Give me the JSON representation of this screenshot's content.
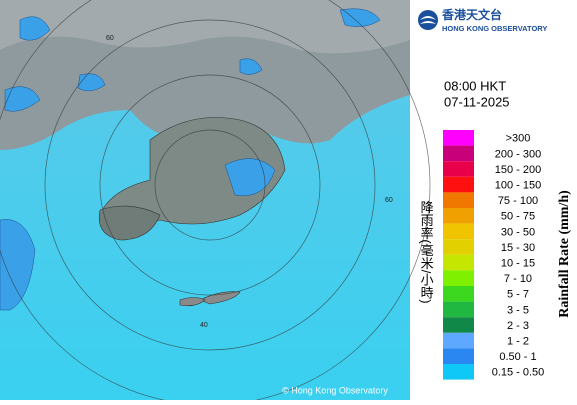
{
  "header": {
    "title_zh": "香港天文台",
    "title_en": "HONG KONG OBSERVATORY"
  },
  "time": "08:00 HKT",
  "date": "07-11-2025",
  "legend": {
    "title_zh": "降雨率(毫米/小時)",
    "title_en": "Rainfall Rate (mm/h)",
    "items": [
      {
        "label": ">300",
        "color": "#ff00ff"
      },
      {
        "label": "200 - 300",
        "color": "#c8007a"
      },
      {
        "label": "150 - 200",
        "color": "#e8004a"
      },
      {
        "label": "100 - 150",
        "color": "#ff1010"
      },
      {
        "label": "75 - 100",
        "color": "#f07800"
      },
      {
        "label": "50 - 75",
        "color": "#f0a000"
      },
      {
        "label": "30 - 50",
        "color": "#f0c400"
      },
      {
        "label": "15 - 30",
        "color": "#e2d000"
      },
      {
        "label": "10 - 15",
        "color": "#c4e600"
      },
      {
        "label": "7 - 10",
        "color": "#7ef000"
      },
      {
        "label": "5 - 7",
        "color": "#3cd820"
      },
      {
        "label": "3 - 5",
        "color": "#20b840"
      },
      {
        "label": "2 - 3",
        "color": "#108848"
      },
      {
        "label": "1 - 2",
        "color": "#5ea8ff"
      },
      {
        "label": "0.50 - 1",
        "color": "#2a86f0"
      },
      {
        "label": "0.15 - 0.50",
        "color": "#10c8f8"
      }
    ]
  },
  "map": {
    "ring_labels": [
      "60",
      "60",
      "40"
    ],
    "copyright": "© Hong Kong Observatory"
  }
}
